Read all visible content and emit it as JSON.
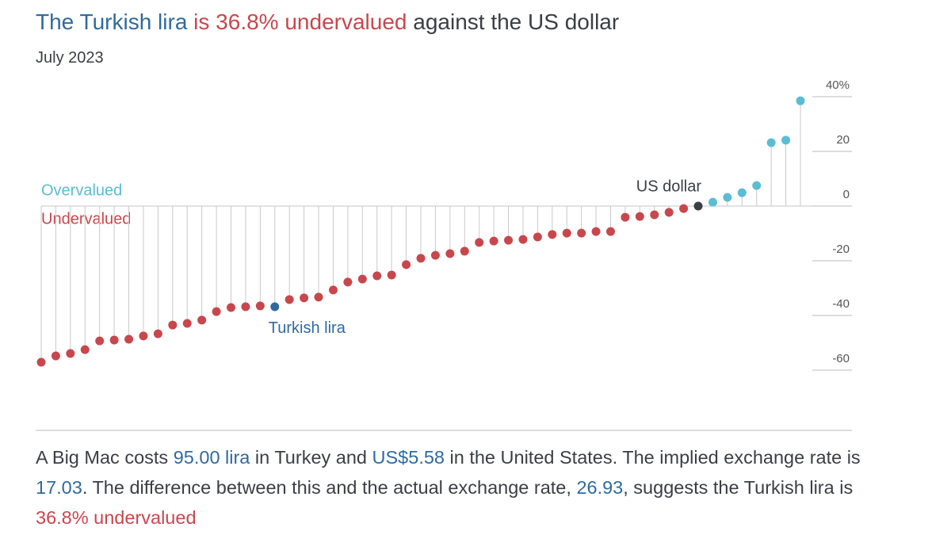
{
  "chart_data": {
    "type": "lollipop",
    "title": [
      {
        "text": "The Turkish lira",
        "color": "#2f6a9e"
      },
      {
        "text": " is 36.8% undervalued",
        "color": "#c8474d"
      },
      {
        "text": " against the US dollar",
        "color": "#3a3f45"
      }
    ],
    "subtitle": "July 2023",
    "above_label": {
      "text": "Overvalued",
      "color": "#5bbdd3"
    },
    "below_label": {
      "text": "Undervalued",
      "color": "#c8474d"
    },
    "categories": [
      null,
      null,
      null,
      null,
      null,
      null,
      null,
      null,
      null,
      null,
      null,
      null,
      null,
      null,
      null,
      null,
      "Turkish lira",
      null,
      null,
      null,
      null,
      null,
      null,
      null,
      null,
      null,
      null,
      null,
      null,
      null,
      null,
      null,
      null,
      null,
      null,
      null,
      null,
      null,
      null,
      null,
      null,
      null,
      null,
      null,
      null,
      "US dollar",
      null,
      null,
      null,
      null,
      null,
      null,
      null
    ],
    "values": [
      -57.1,
      -54.8,
      -53.9,
      -52.5,
      -49.3,
      -49.0,
      -48.7,
      -47.5,
      -46.7,
      -43.5,
      -42.9,
      -41.7,
      -38.6,
      -37.1,
      -36.8,
      -36.5,
      -36.8,
      -34.2,
      -33.6,
      -33.3,
      -30.7,
      -27.8,
      -26.7,
      -25.5,
      -25.2,
      -21.4,
      -19.1,
      -18.0,
      -17.4,
      -16.5,
      -13.3,
      -12.8,
      -12.5,
      -12.2,
      -11.3,
      -10.4,
      -9.9,
      -9.9,
      -9.3,
      -9.3,
      -4.1,
      -3.8,
      -3.2,
      -2.3,
      -0.9,
      0,
      1.4,
      3.2,
      4.9,
      7.5,
      23.2,
      24.1,
      38.5
    ],
    "under_color": "#c8474d",
    "over_color": "#5bbdd3",
    "highlight_colors": {
      "Turkish lira": "#2f6a9e",
      "US dollar": "#3a3f45"
    },
    "ylim": [
      -60,
      40
    ],
    "yticks": [
      {
        "value": 40,
        "label": "40%"
      },
      20,
      0,
      -20,
      -40,
      -60
    ]
  },
  "footnote": [
    {
      "text": "A Big Mac costs ",
      "color": "#3a3f45"
    },
    {
      "text": "95.00 lira",
      "color": "#2f6a9e"
    },
    {
      "text": " in Turkey and ",
      "color": "#3a3f45"
    },
    {
      "text": "US$5.58",
      "color": "#2f6a9e"
    },
    {
      "text": " in the United States. The implied exchange rate is ",
      "color": "#3a3f45"
    },
    {
      "text": "17.03",
      "color": "#2f6a9e"
    },
    {
      "text": ". The difference between this and the actual exchange rate, ",
      "color": "#3a3f45"
    },
    {
      "text": "26.93",
      "color": "#2f6a9e"
    },
    {
      "text": ", suggests the Turkish lira is ",
      "color": "#3a3f45"
    },
    {
      "text": "36.8% undervalued",
      "color": "#c8474d"
    }
  ]
}
